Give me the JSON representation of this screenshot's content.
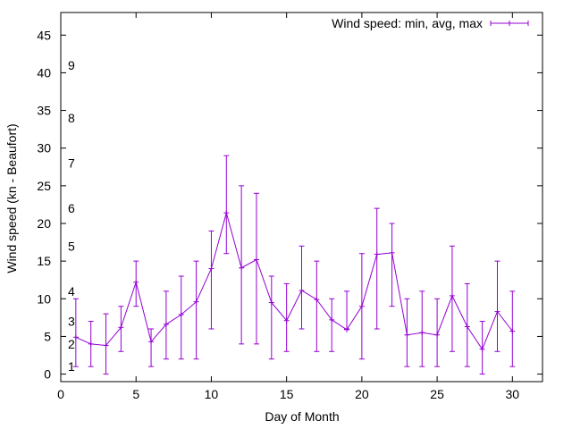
{
  "chart_data": {
    "type": "line",
    "title": "",
    "xlabel": "Day of Month",
    "ylabel": "Wind speed (kn - Beaufort)",
    "xlim": [
      0,
      32
    ],
    "ylim": [
      -1,
      48
    ],
    "x_ticks": [
      0,
      5,
      10,
      15,
      20,
      25,
      30
    ],
    "y_ticks": [
      0,
      5,
      10,
      15,
      20,
      25,
      30,
      35,
      40,
      45
    ],
    "grid": false,
    "legend_position": "top-right",
    "series": [
      {
        "name": "Wind speed: min, avg, max",
        "color": "#9400d3",
        "x": [
          1,
          2,
          3,
          4,
          5,
          6,
          7,
          8,
          9,
          10,
          11,
          12,
          13,
          14,
          15,
          16,
          17,
          18,
          19,
          20,
          21,
          22,
          23,
          24,
          25,
          26,
          27,
          28,
          29,
          30
        ],
        "min": [
          1,
          1,
          0,
          3,
          9,
          1,
          2,
          2,
          2,
          6,
          16,
          4,
          4,
          2,
          3,
          6,
          3,
          3,
          6,
          2,
          6,
          9,
          1,
          1,
          1,
          3,
          1,
          0,
          3,
          1
        ],
        "avg": [
          4.9,
          4.0,
          3.8,
          6.2,
          12.2,
          4.3,
          6.6,
          7.9,
          9.6,
          14.0,
          21.4,
          14.1,
          15.2,
          9.5,
          7.1,
          11.1,
          9.9,
          7.2,
          5.9,
          9.0,
          15.9,
          16.1,
          5.2,
          5.5,
          5.2,
          10.4,
          6.3,
          3.3,
          8.3,
          5.7
        ],
        "max": [
          10,
          7,
          8,
          9,
          15,
          6,
          11,
          13,
          15,
          19,
          29,
          25,
          24,
          13,
          12,
          17,
          15,
          10,
          11,
          16,
          22,
          20,
          10,
          11,
          10,
          17,
          12,
          7,
          15,
          11
        ]
      }
    ],
    "annotations": [
      {
        "text": "1",
        "y": 1
      },
      {
        "text": "2",
        "y": 4
      },
      {
        "text": "3",
        "y": 7
      },
      {
        "text": "4",
        "y": 11
      },
      {
        "text": "5",
        "y": 17
      },
      {
        "text": "6",
        "y": 22
      },
      {
        "text": "7",
        "y": 28
      },
      {
        "text": "8",
        "y": 34
      },
      {
        "text": "9",
        "y": 41
      }
    ]
  }
}
